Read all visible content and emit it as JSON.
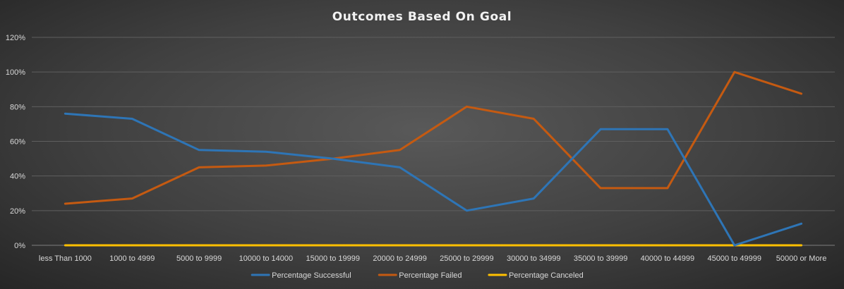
{
  "chart_data": {
    "type": "line",
    "title": "Outcomes  Based  On  Goal",
    "xlabel": "",
    "ylabel": "",
    "ylim": [
      0,
      1.2
    ],
    "yticks": [
      0,
      0.2,
      0.4,
      0.6,
      0.8,
      1.0,
      1.2
    ],
    "ytick_labels": [
      "0%",
      "20%",
      "40%",
      "60%",
      "80%",
      "100%",
      "120%"
    ],
    "grid": true,
    "legend_position": "bottom",
    "categories": [
      "less Than 1000",
      "1000 to 4999",
      "5000 to 9999",
      "10000 to 14000",
      "15000 to 19999",
      "20000 to 24999",
      "25000 to 29999",
      "30000 to 34999",
      "35000 to 39999",
      "40000 to 44999",
      "45000 to 49999",
      "50000 or More"
    ],
    "series": [
      {
        "name": "Percentage Successful",
        "color": "#2e75b6",
        "values": [
          0.76,
          0.73,
          0.55,
          0.54,
          0.5,
          0.45,
          0.2,
          0.27,
          0.67,
          0.67,
          0.0,
          0.125
        ]
      },
      {
        "name": "Percentage Failed",
        "color": "#c55a11",
        "values": [
          0.24,
          0.27,
          0.45,
          0.46,
          0.5,
          0.55,
          0.8,
          0.73,
          0.33,
          0.33,
          1.0,
          0.875
        ]
      },
      {
        "name": "Percentage Canceled",
        "color": "#ffc000",
        "values": [
          0,
          0,
          0,
          0,
          0,
          0,
          0,
          0,
          0,
          0,
          0,
          0
        ]
      }
    ]
  }
}
